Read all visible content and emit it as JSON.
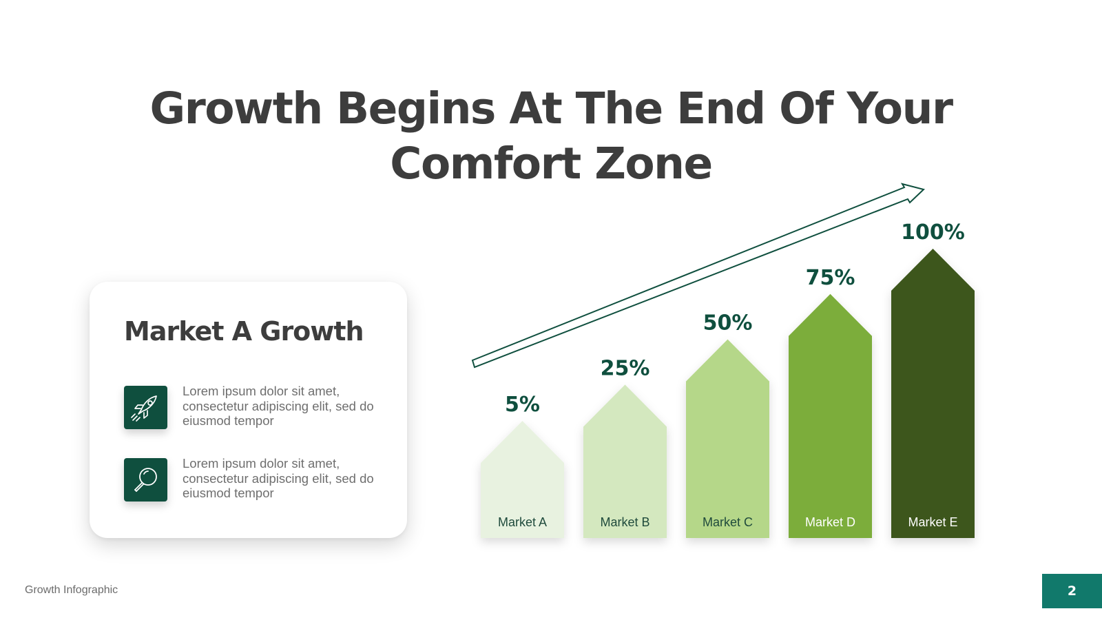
{
  "slide": {
    "title": "Growth Begins At The End Of Your Comfort Zone",
    "footer_label": "Growth Infographic",
    "page_number": "2"
  },
  "card": {
    "title": "Market A Growth",
    "items": [
      {
        "icon": "rocket-icon",
        "text": "Lorem ipsum dolor sit amet, consectetur adipiscing elit, sed do eiusmod tempor"
      },
      {
        "icon": "magnifier-icon",
        "text": "Lorem ipsum dolor sit amet, consectetur adipiscing elit, sed do eiusmod tempor"
      }
    ]
  },
  "colors": {
    "title_text": "#3d3d3d",
    "value_labels": "#0f4f3e",
    "icon_bg": "#0f4f3e",
    "page_badge": "#11796b",
    "arrow": "#0f4f3e",
    "bars": [
      "#e8f2e0",
      "#d4e8bf",
      "#b5d789",
      "#7cad3a",
      "#3e561f"
    ],
    "bar_label_text": [
      "#1f4a3c",
      "#1f4a3c",
      "#1f4a3c",
      "#ffffff",
      "#ffffff"
    ]
  },
  "chart_data": {
    "type": "bar",
    "categories": [
      "Market A",
      "Market B",
      "Market C",
      "Market D",
      "Market E"
    ],
    "values": [
      5,
      25,
      50,
      75,
      100
    ],
    "value_labels": [
      "5%",
      "25%",
      "50%",
      "75%",
      "100%"
    ],
    "title": "",
    "xlabel": "",
    "ylabel": "",
    "grid": false
  }
}
